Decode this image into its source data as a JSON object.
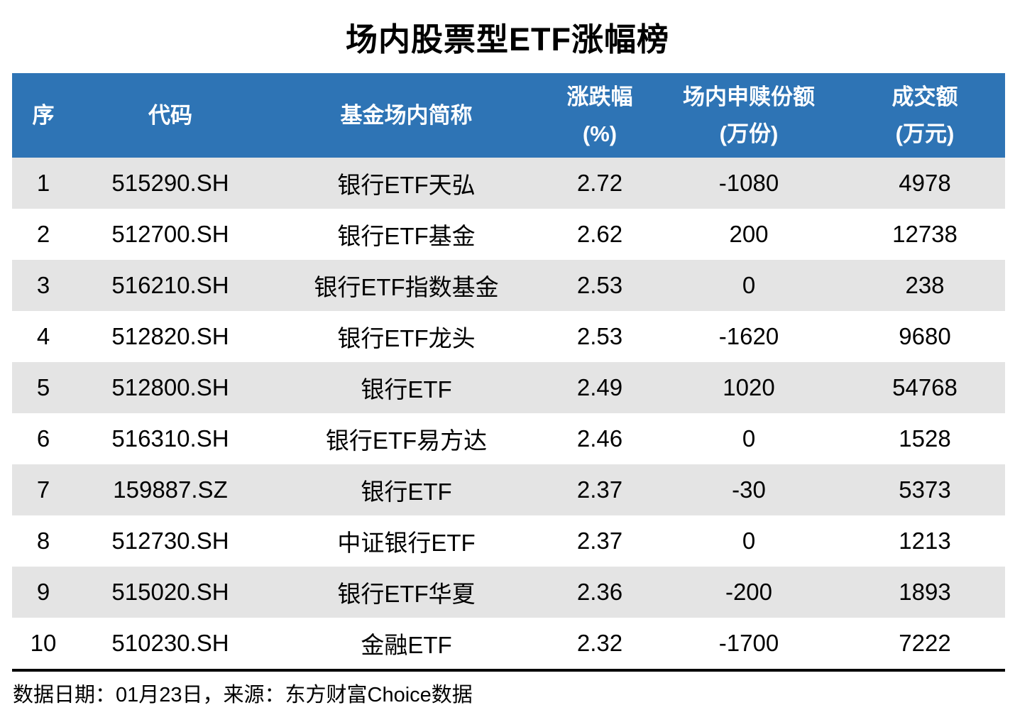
{
  "title": "场内股票型ETF涨幅榜",
  "colors": {
    "header_bg": "#2E74B5",
    "header_text": "#FFFFFF",
    "row_alt_bg": "#E4E4E4",
    "row_bg": "#FFFFFF",
    "body_text": "#000000",
    "rule": "#000000"
  },
  "header": {
    "rank": "序",
    "code": "代码",
    "name": "基金场内简称",
    "change_l1": "涨跌幅",
    "change_l2": "(%)",
    "shares_l1": "场内申赎份额",
    "shares_l2": "(万份)",
    "turnover_l1": "成交额",
    "turnover_l2": "(万元)"
  },
  "footer": {
    "text": "数据日期：01月23日，来源：东方财富Choice数据"
  },
  "chart_data": {
    "type": "table",
    "title": "场内股票型ETF涨幅榜",
    "columns": [
      "序",
      "代码",
      "基金场内简称",
      "涨跌幅(%)",
      "场内申赎份额(万份)",
      "成交额(万元)"
    ],
    "rows": [
      [
        "1",
        "515290.SH",
        "银行ETF天弘",
        "2.72",
        "-1080",
        "4978"
      ],
      [
        "2",
        "512700.SH",
        "银行ETF基金",
        "2.62",
        "200",
        "12738"
      ],
      [
        "3",
        "516210.SH",
        "银行ETF指数基金",
        "2.53",
        "0",
        "238"
      ],
      [
        "4",
        "512820.SH",
        "银行ETF龙头",
        "2.53",
        "-1620",
        "9680"
      ],
      [
        "5",
        "512800.SH",
        "银行ETF",
        "2.49",
        "1020",
        "54768"
      ],
      [
        "6",
        "516310.SH",
        "银行ETF易方达",
        "2.46",
        "0",
        "1528"
      ],
      [
        "7",
        "159887.SZ",
        "银行ETF",
        "2.37",
        "-30",
        "5373"
      ],
      [
        "8",
        "512730.SH",
        "中证银行ETF",
        "2.37",
        "0",
        "1213"
      ],
      [
        "9",
        "515020.SH",
        "银行ETF华夏",
        "2.36",
        "-200",
        "1893"
      ],
      [
        "10",
        "510230.SH",
        "金融ETF",
        "2.32",
        "-1700",
        "7222"
      ]
    ],
    "source_note": "数据日期：01月23日，来源：东方财富Choice数据",
    "layout": {
      "zebra_striping": true,
      "first_data_row_shaded": true,
      "grid": false
    }
  }
}
